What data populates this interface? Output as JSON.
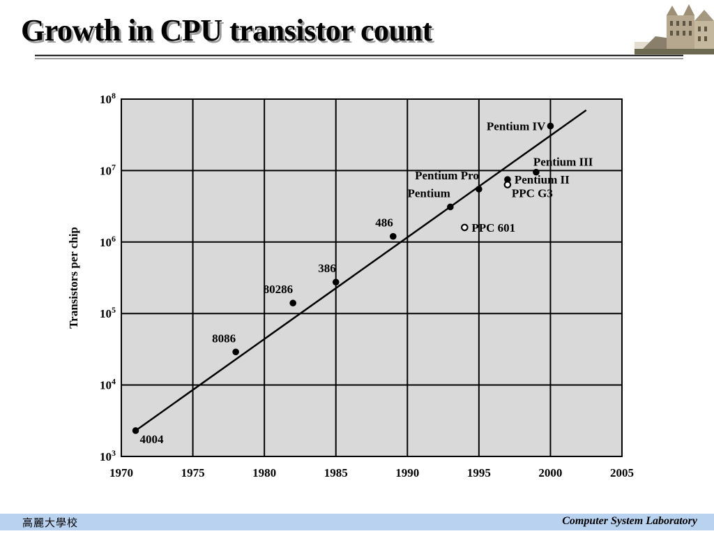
{
  "slide": {
    "title": "Growth in CPU transistor count",
    "footer_left": "高麗大學校",
    "footer_right": "Computer System Laboratory",
    "logo_icon": "university-building-icon"
  },
  "chart_data": {
    "type": "scatter",
    "title": "",
    "xlabel": "",
    "ylabel": "Transistors per chip",
    "xlim": [
      1970,
      2005
    ],
    "ylim": [
      1000,
      100000000
    ],
    "y_scale": "log",
    "grid": true,
    "x_ticks": [
      1970,
      1975,
      1980,
      1985,
      1990,
      1995,
      2000,
      2005
    ],
    "y_ticks": [
      {
        "value": 1000,
        "base": "10",
        "exp": "3"
      },
      {
        "value": 10000,
        "base": "10",
        "exp": "4"
      },
      {
        "value": 100000,
        "base": "10",
        "exp": "5"
      },
      {
        "value": 1000000,
        "base": "10",
        "exp": "6"
      },
      {
        "value": 10000000,
        "base": "10",
        "exp": "7"
      },
      {
        "value": 100000000,
        "base": "10",
        "exp": "8"
      }
    ],
    "points": [
      {
        "label": "4004",
        "x": 1971,
        "y": 2300,
        "marker": "filled",
        "label_pos": "below-right"
      },
      {
        "label": "8086",
        "x": 1978,
        "y": 29000,
        "marker": "filled",
        "label_pos": "above-left"
      },
      {
        "label": "80286",
        "x": 1982,
        "y": 140000,
        "marker": "filled",
        "label_pos": "above-left"
      },
      {
        "label": "386",
        "x": 1985,
        "y": 275000,
        "marker": "filled",
        "label_pos": "above-left"
      },
      {
        "label": "486",
        "x": 1989,
        "y": 1200000,
        "marker": "filled",
        "label_pos": "above-left"
      },
      {
        "label": "Pentium",
        "x": 1993,
        "y": 3100000,
        "marker": "filled",
        "label_pos": "above-left"
      },
      {
        "label": "Pentium Pro",
        "x": 1995,
        "y": 5500000,
        "marker": "filled",
        "label_pos": "above-left"
      },
      {
        "label": "PPC 601",
        "x": 1994,
        "y": 1600000,
        "marker": "hollow",
        "label_pos": "right"
      },
      {
        "label": "Pentium II",
        "x": 1997,
        "y": 7500000,
        "marker": "filled",
        "label_pos": "right"
      },
      {
        "label": "PPC G3",
        "x": 1997,
        "y": 6350000,
        "marker": "hollow",
        "label_pos": "below-right"
      },
      {
        "label": "Pentium III",
        "x": 1999,
        "y": 9500000,
        "marker": "filled",
        "label_pos": "above-right"
      },
      {
        "label": "Pentium IV",
        "x": 2000,
        "y": 42000000,
        "marker": "filled",
        "label_pos": "left"
      }
    ],
    "trend_line": {
      "x": [
        1971,
        2002.5
      ],
      "y": [
        2300,
        70000000
      ]
    },
    "colors": {
      "plot_bg": "#d9d9d9",
      "grid": "#000000",
      "marker": "#000000"
    }
  }
}
